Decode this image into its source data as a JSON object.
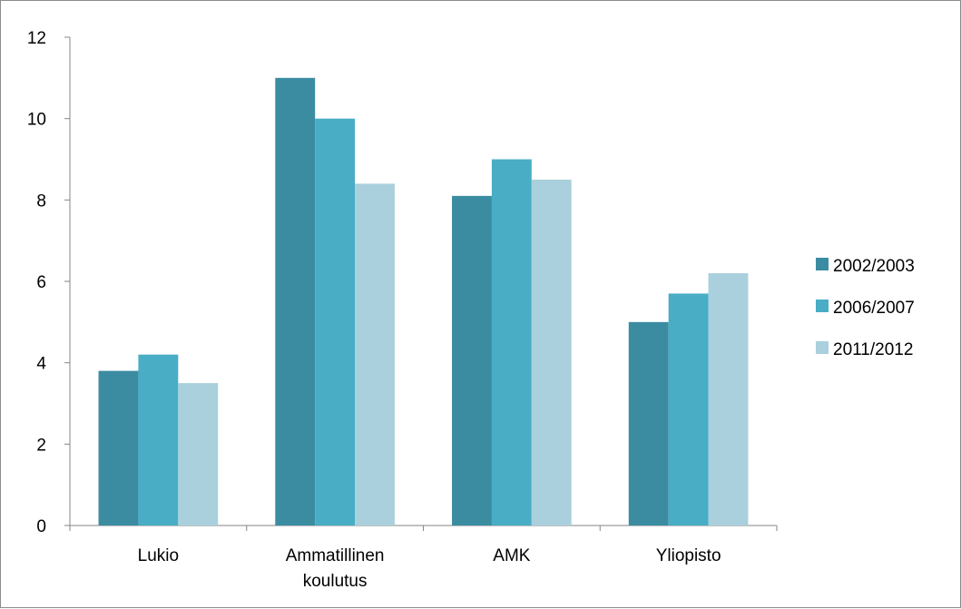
{
  "chart_data": {
    "type": "bar",
    "categories": [
      [
        "Lukio"
      ],
      [
        "Ammatillinen",
        "koulutus"
      ],
      [
        "AMK"
      ],
      [
        "Yliopisto"
      ]
    ],
    "series": [
      {
        "name": "2002/2003",
        "values": [
          3.8,
          11,
          8.1,
          5
        ],
        "color": "#3b8ca1"
      },
      {
        "name": "2006/2007",
        "values": [
          4.2,
          10,
          9,
          5.7
        ],
        "color": "#48adc5"
      },
      {
        "name": "2011/2012",
        "values": [
          3.5,
          8.4,
          8.5,
          6.2
        ],
        "color": "#a9d0dc"
      }
    ],
    "y_ticks": [
      "0",
      "2",
      "4",
      "6",
      "8",
      "10",
      "12"
    ],
    "ylim": [
      0,
      12
    ],
    "grid": false,
    "legend_position": "right"
  }
}
